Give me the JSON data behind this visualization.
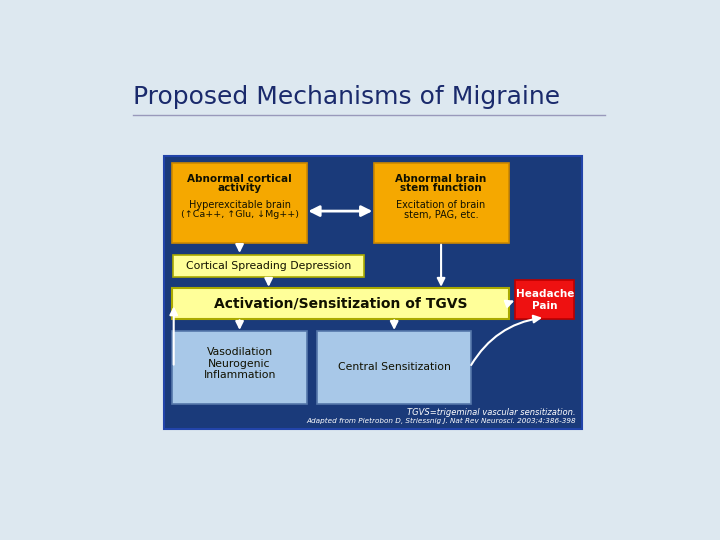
{
  "title": "Proposed Mechanisms of Migraine",
  "title_color": "#1a2a6c",
  "title_fontsize": 18,
  "outer_bg": "#dde8f0",
  "diagram_bg": "#1a3a7a",
  "box_orange": "#f5a800",
  "box_yellow": "#ffff99",
  "box_blue": "#a8c8e8",
  "box_red": "#ee1111",
  "text_dark": "#111100",
  "text_white": "#ffffff",
  "footnote1": "TGVS=trigeminal vascular sensitization.",
  "footnote2": "Adapted from Pietrobon D, Striessnig J. Nat Rev Neurosci. 2003;4:386-398"
}
